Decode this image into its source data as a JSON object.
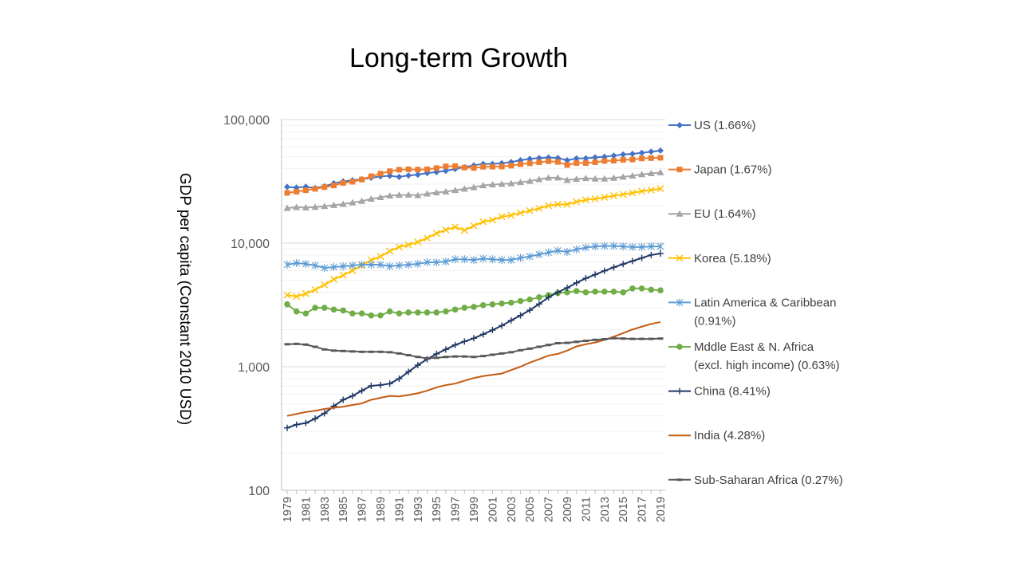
{
  "chart_data": {
    "type": "line",
    "title": "Long-term Growth",
    "xlabel": "",
    "ylabel": "GDP per capita (Constant 2010 USD)",
    "y_scale": "log",
    "ylim": [
      100,
      100000
    ],
    "y_ticks": [
      100,
      1000,
      10000,
      100000
    ],
    "y_tick_labels": [
      "100",
      "1,000",
      "10,000",
      "100,000"
    ],
    "x": [
      1979,
      1980,
      1981,
      1982,
      1983,
      1984,
      1985,
      1986,
      1987,
      1988,
      1989,
      1990,
      1991,
      1992,
      1993,
      1994,
      1995,
      1996,
      1997,
      1998,
      1999,
      2000,
      2001,
      2002,
      2003,
      2004,
      2005,
      2006,
      2007,
      2008,
      2009,
      2010,
      2011,
      2012,
      2013,
      2014,
      2015,
      2016,
      2017,
      2018,
      2019
    ],
    "x_tick_labels": [
      "1979",
      "1981",
      "1983",
      "1985",
      "1987",
      "1989",
      "1991",
      "1993",
      "1995",
      "1997",
      "1999",
      "2001",
      "2003",
      "2005",
      "2007",
      "2009",
      "2011",
      "2013",
      "2015",
      "2017",
      "2019"
    ],
    "grid": true,
    "legend_position": "right",
    "series": [
      {
        "name": "US (1.66%)",
        "legend_lines": [
          "US (1.66%)"
        ],
        "color": "#4472C4",
        "marker": "diamond",
        "values": [
          28500,
          28200,
          28600,
          27900,
          28800,
          30500,
          31600,
          32300,
          32900,
          33800,
          34700,
          35100,
          34400,
          35300,
          35800,
          36900,
          37600,
          38500,
          39800,
          41200,
          42600,
          43800,
          43800,
          44300,
          45300,
          46900,
          48100,
          48800,
          49300,
          48900,
          46900,
          48500,
          48600,
          49500,
          50000,
          51100,
          52200,
          52800,
          53800,
          55000,
          56100
        ]
      },
      {
        "name": "Japan (1.67%)",
        "legend_lines": [
          "Japan (1.67%)"
        ],
        "color": "#ED7D31",
        "marker": "square",
        "values": [
          25500,
          26100,
          26800,
          27500,
          28400,
          29300,
          30700,
          31400,
          32700,
          34800,
          36500,
          38200,
          39300,
          39600,
          39400,
          39600,
          40500,
          41800,
          42000,
          40900,
          40600,
          41500,
          41600,
          41700,
          42400,
          43500,
          44300,
          45100,
          46000,
          45400,
          42900,
          44500,
          44500,
          45200,
          46300,
          46500,
          47200,
          47500,
          48500,
          48800,
          49100
        ]
      },
      {
        "name": "EU (1.64%)",
        "legend_lines": [
          "EU (1.64%)"
        ],
        "color": "#A5A5A5",
        "marker": "triangle",
        "values": [
          19200,
          19500,
          19400,
          19600,
          19900,
          20300,
          20700,
          21300,
          21900,
          22800,
          23500,
          24200,
          24500,
          24600,
          24400,
          25100,
          25700,
          26100,
          26800,
          27500,
          28300,
          29300,
          29800,
          30100,
          30400,
          31100,
          31800,
          32800,
          33800,
          33900,
          32400,
          33000,
          33500,
          33200,
          33200,
          33700,
          34400,
          35100,
          36000,
          36700,
          37300
        ]
      },
      {
        "name": "Korea (5.18%)",
        "legend_lines": [
          "Korea (5.18%)"
        ],
        "color": "#FFC000",
        "marker": "x",
        "values": [
          3800,
          3700,
          3900,
          4200,
          4600,
          5100,
          5500,
          6000,
          6600,
          7300,
          7800,
          8600,
          9300,
          9700,
          10200,
          11000,
          12000,
          12800,
          13500,
          12700,
          13800,
          14900,
          15400,
          16400,
          16800,
          17600,
          18300,
          19100,
          20100,
          20600,
          20600,
          21600,
          22400,
          22800,
          23500,
          24200,
          24800,
          25500,
          26300,
          26900,
          27600
        ]
      },
      {
        "name": "Latin America & Caribbean (0.91%)",
        "legend_lines": [
          "Latin America & Caribbean",
          "(0.91%)"
        ],
        "color": "#5B9BD5",
        "marker": "star",
        "values": [
          6700,
          6900,
          6800,
          6600,
          6300,
          6400,
          6500,
          6600,
          6700,
          6700,
          6700,
          6500,
          6600,
          6700,
          6800,
          7000,
          7000,
          7100,
          7400,
          7400,
          7300,
          7500,
          7400,
          7300,
          7300,
          7600,
          7800,
          8100,
          8400,
          8700,
          8500,
          8900,
          9200,
          9400,
          9500,
          9500,
          9400,
          9300,
          9300,
          9400,
          9400
        ]
      },
      {
        "name": "Mddle East & N. Africa (excl. high income) (0.63%)",
        "legend_lines": [
          "Mddle East & N. Africa",
          "(excl. high income) (0.63%)"
        ],
        "color": "#70AD47",
        "marker": "circle",
        "values": [
          3200,
          2800,
          2700,
          3000,
          3000,
          2900,
          2850,
          2700,
          2700,
          2600,
          2600,
          2800,
          2700,
          2750,
          2750,
          2750,
          2750,
          2800,
          2900,
          3000,
          3050,
          3150,
          3200,
          3250,
          3300,
          3400,
          3500,
          3650,
          3800,
          3950,
          4000,
          4100,
          4000,
          4050,
          4050,
          4050,
          4000,
          4300,
          4300,
          4200,
          4150
        ]
      },
      {
        "name": "China (8.41%)",
        "legend_lines": [
          "China (8.41%)"
        ],
        "color": "#1F3864",
        "marker": "plus",
        "values": [
          320,
          340,
          350,
          380,
          420,
          480,
          540,
          580,
          640,
          700,
          710,
          730,
          800,
          910,
          1030,
          1150,
          1270,
          1380,
          1500,
          1600,
          1700,
          1830,
          1980,
          2150,
          2370,
          2600,
          2870,
          3220,
          3640,
          4000,
          4350,
          4770,
          5200,
          5570,
          5970,
          6370,
          6770,
          7170,
          7590,
          8020,
          8250
        ]
      },
      {
        "name": "India (4.28%)",
        "legend_lines": [
          "India (4.28%)"
        ],
        "color": "#C55A11",
        "marker": "none",
        "values": [
          400,
          415,
          430,
          440,
          455,
          465,
          475,
          490,
          505,
          540,
          560,
          580,
          575,
          590,
          610,
          640,
          680,
          710,
          730,
          770,
          810,
          840,
          860,
          880,
          940,
          1000,
          1080,
          1150,
          1230,
          1270,
          1350,
          1460,
          1520,
          1570,
          1650,
          1750,
          1870,
          2000,
          2110,
          2220,
          2300
        ]
      },
      {
        "name": "Sub-Saharan Africa (0.27%)",
        "legend_lines": [
          "Sub-Saharan Africa (0.27%)"
        ],
        "color": "#595959",
        "marker": "dash",
        "values": [
          1520,
          1530,
          1510,
          1450,
          1380,
          1350,
          1340,
          1330,
          1320,
          1320,
          1320,
          1310,
          1280,
          1240,
          1200,
          1170,
          1180,
          1200,
          1210,
          1210,
          1200,
          1220,
          1250,
          1280,
          1310,
          1360,
          1400,
          1450,
          1500,
          1550,
          1560,
          1590,
          1620,
          1650,
          1670,
          1700,
          1690,
          1680,
          1680,
          1680,
          1690
        ]
      }
    ]
  }
}
